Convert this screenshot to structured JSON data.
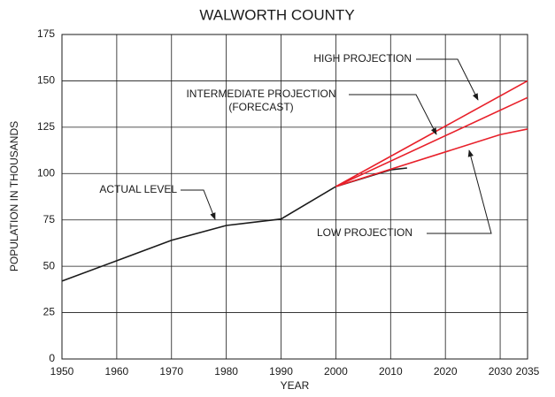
{
  "chart_data": {
    "type": "line",
    "title": "WALWORTH COUNTY",
    "x_label": "YEAR",
    "y_label": "POPULATION IN THOUSANDS",
    "xlim": [
      1950,
      2035
    ],
    "ylim": [
      0,
      175
    ],
    "xticks": [
      1950,
      1960,
      1970,
      1980,
      1990,
      2000,
      2010,
      2020,
      2030,
      2035
    ],
    "yticks": [
      0,
      25,
      50,
      75,
      100,
      125,
      150,
      175
    ],
    "grid": true,
    "series": [
      {
        "name": "ACTUAL LEVEL",
        "color": "#1a1a1a",
        "x": [
          1950,
          1960,
          1970,
          1980,
          1990,
          2000,
          2010,
          2013
        ],
        "values": [
          42,
          53,
          64,
          72,
          75.5,
          93,
          102,
          103
        ]
      },
      {
        "name": "HIGH PROJECTION",
        "color": "#e8202a",
        "x": [
          2000,
          2035
        ],
        "values": [
          93,
          150
        ]
      },
      {
        "name": "INTERMEDIATE PROJECTION",
        "note": "(FORECAST)",
        "color": "#e8202a",
        "x": [
          2000,
          2035
        ],
        "values": [
          93,
          141
        ]
      },
      {
        "name": "LOW PROJECTION",
        "color": "#e8202a",
        "x": [
          2000,
          2030,
          2035
        ],
        "values": [
          93,
          121,
          124
        ]
      }
    ]
  }
}
